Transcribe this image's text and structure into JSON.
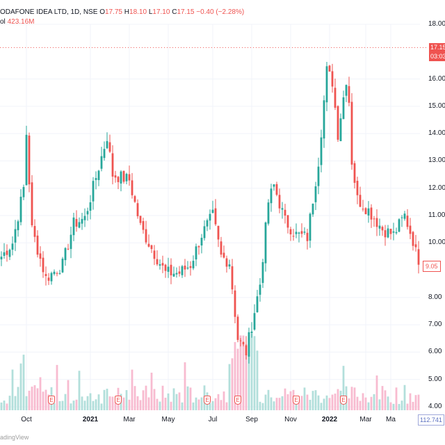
{
  "header": {
    "symbol": "ODAFONE IDEA LTD, 1D, NSE",
    "o_label": "O",
    "o_value": "17.75",
    "h_label": "H",
    "h_value": "18.10",
    "l_label": "L",
    "l_value": "17.10",
    "c_label": "C",
    "c_value": "17.15",
    "change": "−0.40 (−2.28%)",
    "vol_label": "ol",
    "vol_value": "423.16M"
  },
  "price_tag": {
    "value": "17.15",
    "countdown": "03:03"
  },
  "low_tag": "9.05",
  "vol_tag": "112.741",
  "watermark": "adingView",
  "event_marker": "E",
  "colors": {
    "up": "#26a69a",
    "down": "#ef5350",
    "up_vol": "#b2dfdb",
    "down_vol": "#f8bbd0",
    "grid": "#f0f3fa"
  },
  "chart_data": {
    "type": "candlestick",
    "title": "ODAFONE IDEA LTD, 1D, NSE",
    "ylim": [
      4.0,
      18.0
    ],
    "y_ticks": [
      "18.00",
      "16.00",
      "15.00",
      "14.00",
      "13.00",
      "12.00",
      "11.00",
      "10.00",
      "8.00",
      "7.00",
      "6.00",
      "5.00",
      "4.00"
    ],
    "y_tick_values": [
      18,
      16,
      15,
      14,
      13,
      12,
      11,
      10,
      8,
      7,
      6,
      5,
      4
    ],
    "x_ticks": [
      {
        "label": "Oct",
        "bold": false
      },
      {
        "label": "2021",
        "bold": true
      },
      {
        "label": "Mar",
        "bold": false
      },
      {
        "label": "May",
        "bold": false
      },
      {
        "label": "Jul",
        "bold": false
      },
      {
        "label": "Sep",
        "bold": false
      },
      {
        "label": "Nov",
        "bold": false
      },
      {
        "label": "2022",
        "bold": true
      },
      {
        "label": "Mar",
        "bold": false
      },
      {
        "label": "Ma",
        "bold": false
      }
    ],
    "x_tick_index": [
      9,
      32,
      46,
      60,
      76,
      90,
      104,
      118,
      131,
      140
    ],
    "event_index": [
      18,
      42,
      74,
      85,
      106,
      123
    ],
    "anchors": [
      [
        0,
        9.5
      ],
      [
        4,
        10.0
      ],
      [
        8,
        12.0
      ],
      [
        9,
        14.0
      ],
      [
        11,
        10.5
      ],
      [
        16,
        8.7
      ],
      [
        22,
        9.2
      ],
      [
        26,
        10.7
      ],
      [
        30,
        10.9
      ],
      [
        34,
        12.4
      ],
      [
        38,
        13.9
      ],
      [
        40,
        12.5
      ],
      [
        46,
        12.3
      ],
      [
        50,
        10.6
      ],
      [
        54,
        9.8
      ],
      [
        59,
        8.9
      ],
      [
        64,
        8.9
      ],
      [
        68,
        9.2
      ],
      [
        72,
        10.3
      ],
      [
        76,
        11.0
      ],
      [
        79,
        9.5
      ],
      [
        82,
        9.3
      ],
      [
        85,
        6.5
      ],
      [
        88,
        6.0
      ],
      [
        93,
        8.5
      ],
      [
        96,
        11.5
      ],
      [
        98,
        12.1
      ],
      [
        102,
        10.8
      ],
      [
        106,
        10.3
      ],
      [
        110,
        10.2
      ],
      [
        114,
        13.0
      ],
      [
        117,
        16.3
      ],
      [
        119,
        15.9
      ],
      [
        121,
        14.0
      ],
      [
        124,
        16.0
      ],
      [
        125,
        15.2
      ],
      [
        126,
        13.0
      ],
      [
        128,
        11.6
      ],
      [
        132,
        11.2
      ],
      [
        137,
        10.5
      ],
      [
        141,
        10.3
      ],
      [
        145,
        11.0
      ],
      [
        148,
        10.1
      ],
      [
        150,
        9.2
      ]
    ],
    "volume_scale_max": 1000,
    "volume_tag_value": 112.741
  }
}
